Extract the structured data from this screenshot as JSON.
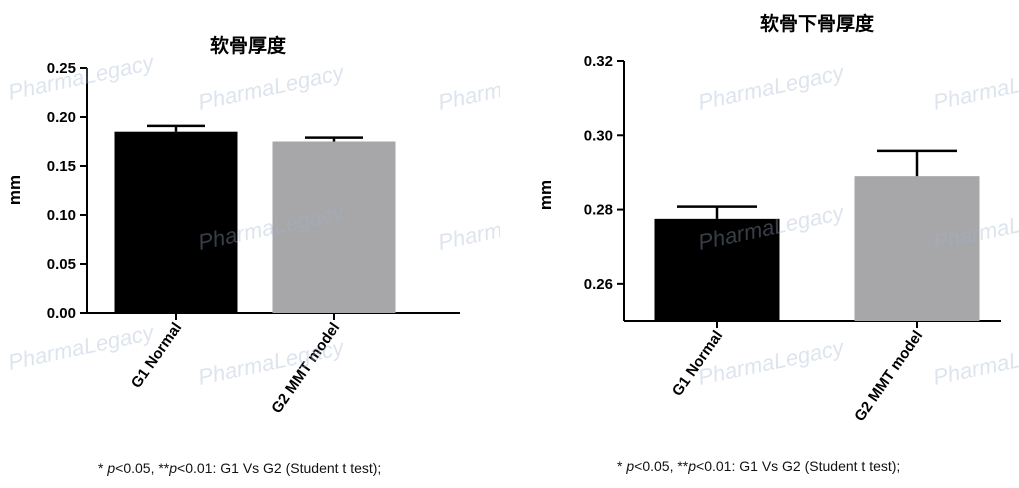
{
  "chart_data": [
    {
      "type": "bar",
      "title": "软骨厚度",
      "ylabel": "mm",
      "xlabel": "",
      "categories": [
        "G1 Normal",
        "G2 MMT model"
      ],
      "values": [
        0.185,
        0.175
      ],
      "errors": [
        0.006,
        0.004
      ],
      "colors": [
        "#000000",
        "#a7a7a9"
      ],
      "ylim": [
        0,
        0.25
      ],
      "yticks": [
        "0.00",
        "0.05",
        "0.10",
        "0.15",
        "0.20",
        "0.25"
      ],
      "grid": false,
      "footnote": {
        "star1": "*",
        "p1": "p",
        "t1": "<0.05, **",
        "p2": "p",
        "t2": "<0.01: G1 Vs G2 (Student t test);"
      }
    },
    {
      "type": "bar",
      "title": "软骨下骨厚度",
      "ylabel": "mm",
      "xlabel": "",
      "categories": [
        "G1 Normal",
        "G2 MMT model"
      ],
      "values": [
        0.2775,
        0.289
      ],
      "errors": [
        0.0033,
        0.0068
      ],
      "colors": [
        "#000000",
        "#a7a7a9"
      ],
      "ylim": [
        0.25,
        0.32
      ],
      "yticks": [
        "0.26",
        "0.28",
        "0.30",
        "0.32"
      ],
      "grid": false,
      "footnote": {
        "star1": "*",
        "p1": "p",
        "t1": "<0.05, **",
        "p2": "p",
        "t2": "<0.01: G1 Vs G2 (Student t test);"
      }
    }
  ],
  "watermark": "PharmaLegacy"
}
